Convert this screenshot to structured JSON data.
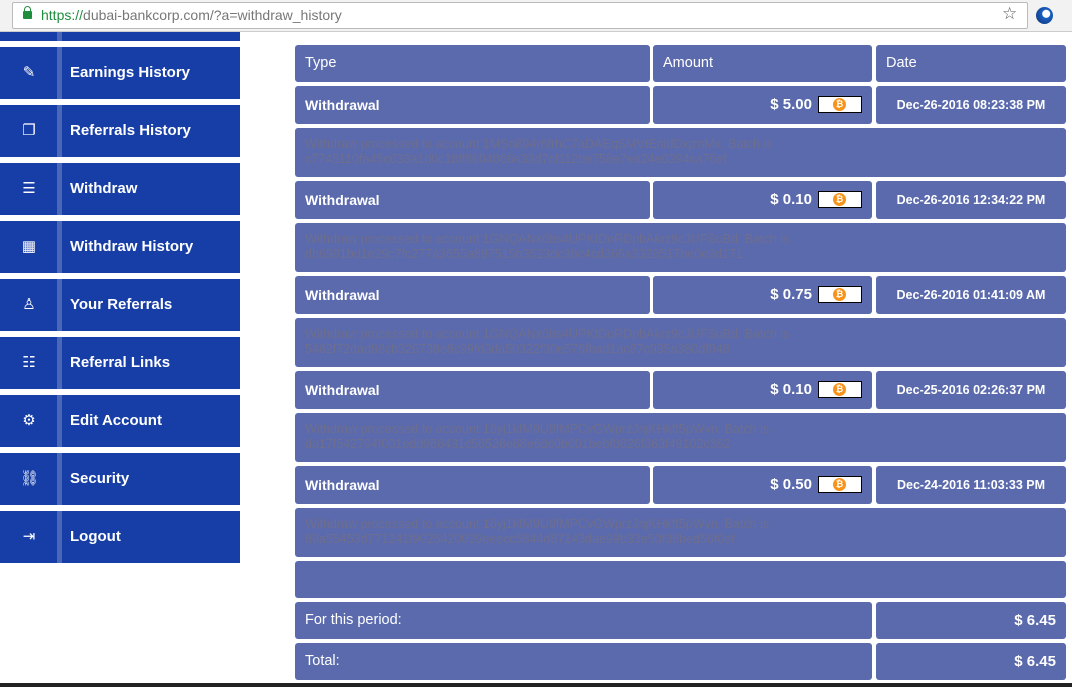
{
  "browser": {
    "url_protocol": "https://",
    "url_rest": "dubai-bankcorp.com/?a=withdraw_history"
  },
  "sidebar": {
    "items": [
      {
        "label": "Earnings History",
        "icon": "edit-icon",
        "glyph": "✎"
      },
      {
        "label": "Referrals History",
        "icon": "copy-icon",
        "glyph": "❐"
      },
      {
        "label": "Withdraw",
        "icon": "list-icon",
        "glyph": "☰"
      },
      {
        "label": "Withdraw History",
        "icon": "calendar-icon",
        "glyph": "▦"
      },
      {
        "label": "Your Referrals",
        "icon": "user-icon",
        "glyph": "♙"
      },
      {
        "label": "Referral Links",
        "icon": "list-alt-icon",
        "glyph": "☷"
      },
      {
        "label": "Edit Account",
        "icon": "gear-icon",
        "glyph": "⚙"
      },
      {
        "label": "Security",
        "icon": "link-icon",
        "glyph": "⛓"
      },
      {
        "label": "Logout",
        "icon": "logout-icon",
        "glyph": "⇥"
      }
    ]
  },
  "table": {
    "headers": {
      "type": "Type",
      "amount": "Amount",
      "date": "Date"
    },
    "rows": [
      {
        "type": "Withdrawal",
        "amount": "$ 5.00",
        "date": "Dec-26-2016 08:23:38 PM",
        "detail": "Withdraw processed to account 1MSn894r8frhC7aDAEqSMVtEnidDxjznMx. Batch is c7745110fa45c633a1d0c18ff8604066a33d7cf112be758e7ea24e0394ca76ef"
      },
      {
        "type": "Withdrawal",
        "amount": "$ 0.10",
        "date": "Dec-26-2016 12:34:22 PM",
        "detail": "Withdraw processed to account 1GNQANx6bs4UPKtDoRDpbAkrz9cJUFSuBd. Batch is db6981bd1e29c7fc277a3655a897515b3523dc38c4cd366a3326517be0e9d171"
      },
      {
        "type": "Withdrawal",
        "amount": "$ 0.75",
        "date": "Dec-26-2016 01:41:09 AM",
        "detail": "Withdraw processed to account 1GNQANx6bs4UPKtDoRDpbAkrz9cJUFSuBd. Batch is 5462f72dad98cb326738e8c99fd3da50322f30e576fbad1ac87c935a380df048"
      },
      {
        "type": "Withdrawal",
        "amount": "$ 0.10",
        "date": "Dec-25-2016 02:26:37 PM",
        "detail": "Withdraw processed to account 16yj1kfM9U9fMPCvGWprzJnjKHkft5pWvn. Batch is da17f542794f001edd966431c56526e68e6dc0b601bebf0826f363f49102c362"
      },
      {
        "type": "Withdrawal",
        "amount": "$ 0.50",
        "date": "Dec-24-2016 11:03:33 PM",
        "detail": "Withdraw processed to account 16yj1kfM9U9fMPCvGWprzJnjKHkft5pWvn. Batch is 89a55453d771241f9025420039eeecc5844d87143dae99b33e50f38bed56f0ef"
      }
    ],
    "period_label": "For this period:",
    "period_value": "$ 6.45",
    "total_label": "Total:",
    "total_value": "$ 6.45"
  },
  "colors": {
    "sidebar": "#163ea6",
    "table": "#5a6aad",
    "bitcoin": "#f7931a"
  }
}
